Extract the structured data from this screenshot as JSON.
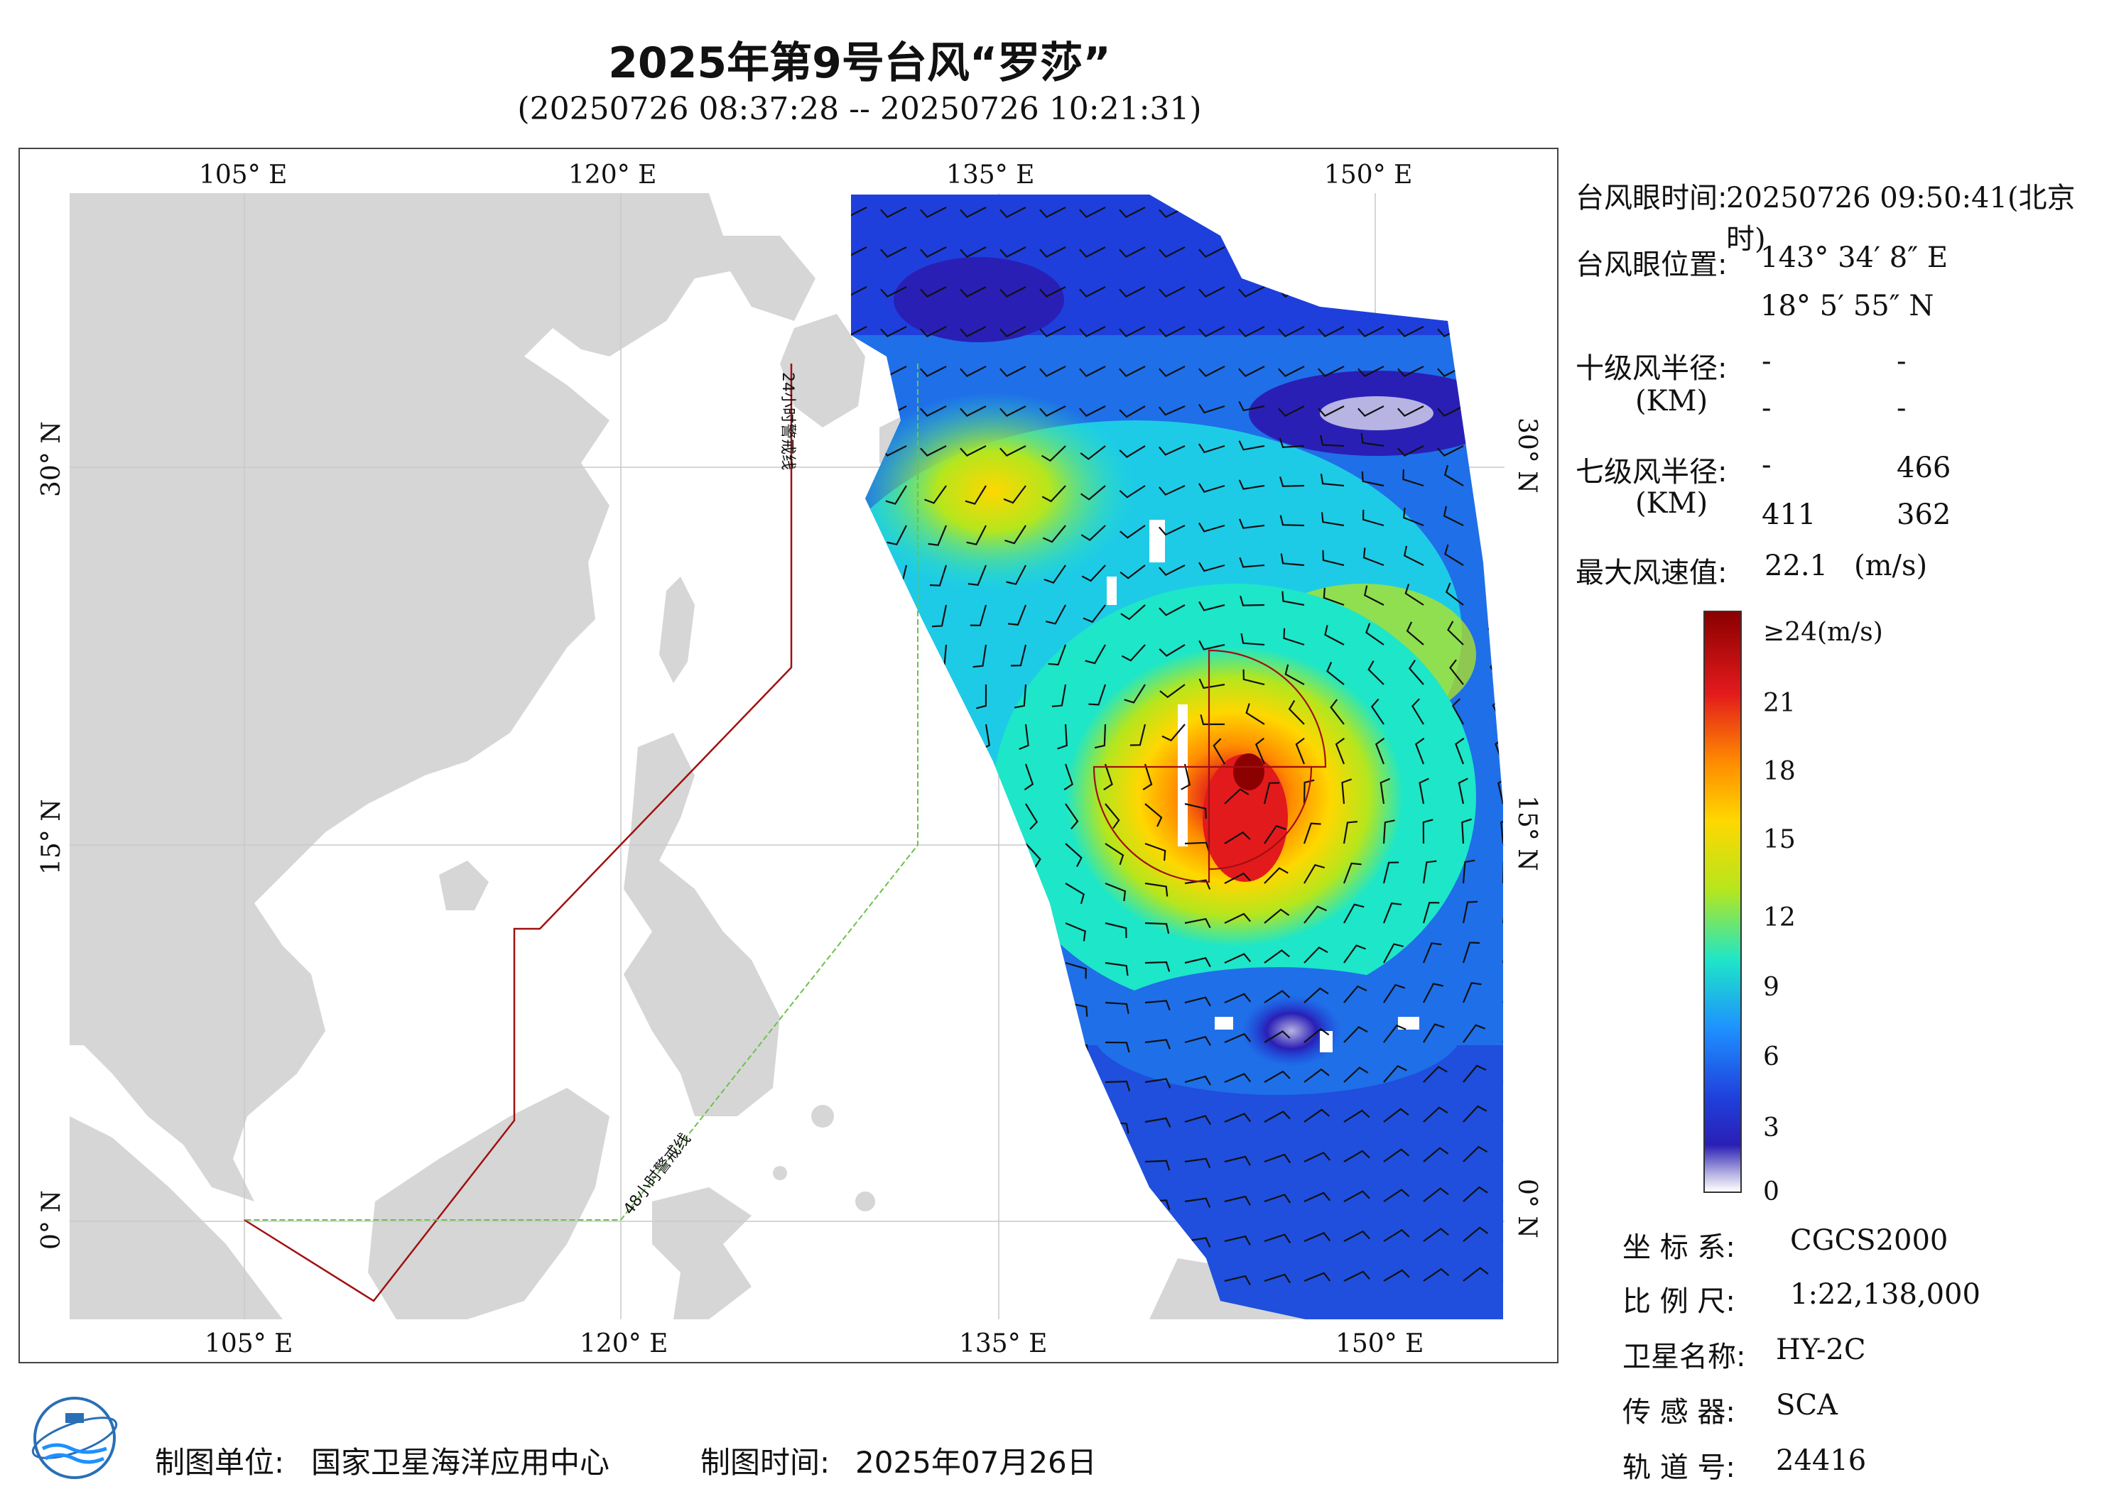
{
  "header": {
    "title": "2025年第9号台风“罗莎”",
    "subtitle": "(20250726 08:37:28 -- 20250726 10:21:31)"
  },
  "map": {
    "lon_ticks_top": [
      "105° E",
      "120° E",
      "135° E",
      "150° E"
    ],
    "lon_ticks_bottom": [
      "105° E",
      "120° E",
      "135° E",
      "150° E"
    ],
    "lat_ticks_left": [
      "30° N",
      "15° N",
      "0° N"
    ],
    "lat_ticks_right": [
      "30° N",
      "15° N",
      "0° N"
    ],
    "warning_24h_label": "24小时警戒线",
    "warning_48h_label": "48小时警戒线",
    "colors": {
      "land": "#d6d6d6",
      "warning_24h": "#a01010",
      "warning_48h": "#6cc24a",
      "radius_circle": "#a01010"
    }
  },
  "info": {
    "eye_time_label": "台风眼时间:",
    "eye_time_value": "20250726 09:50:41(北京时)",
    "eye_pos_label": "台风眼位置:",
    "eye_lon": "143° 34′ 8″ E",
    "eye_lat": "18° 5′ 55″ N",
    "r10_label": "十级风半径:",
    "r10_unit": "(KM)",
    "r10_values": [
      "-",
      "-",
      "-",
      "-"
    ],
    "r7_label": "七级风半径:",
    "r7_unit": "(KM)",
    "r7_values": [
      "-",
      "466",
      "411",
      "362"
    ],
    "max_wind_label": "最大风速值:",
    "max_wind_value": "22.1",
    "max_wind_unit": "(m/s)"
  },
  "colorbar": {
    "top_label": "≥24(m/s)",
    "ticks": [
      "21",
      "18",
      "15",
      "12",
      "9",
      "6",
      "3",
      "0"
    ],
    "colors": [
      "#8b0000",
      "#e31a1c",
      "#ff8c00",
      "#ffd700",
      "#b5e61d",
      "#1ee6c8",
      "#1e90ff",
      "#1f3fdc",
      "#2a1fb5",
      "#b7b3e3",
      "#ffffff"
    ]
  },
  "meta": {
    "crs_label": "坐 标 系:",
    "crs_value": "CGCS2000",
    "scale_label": "比 例 尺:",
    "scale_value": "1:22,138,000",
    "satellite_label": "卫星名称:",
    "satellite_value": "HY-2C",
    "sensor_label": "传 感 器:",
    "sensor_value": "SCA",
    "orbit_label": "轨 道 号:",
    "orbit_value": "24416"
  },
  "footer": {
    "unit_label": "制图单位:",
    "unit_value": "国家卫星海洋应用中心",
    "date_label": "制图时间:",
    "date_value": "2025年07月26日"
  }
}
